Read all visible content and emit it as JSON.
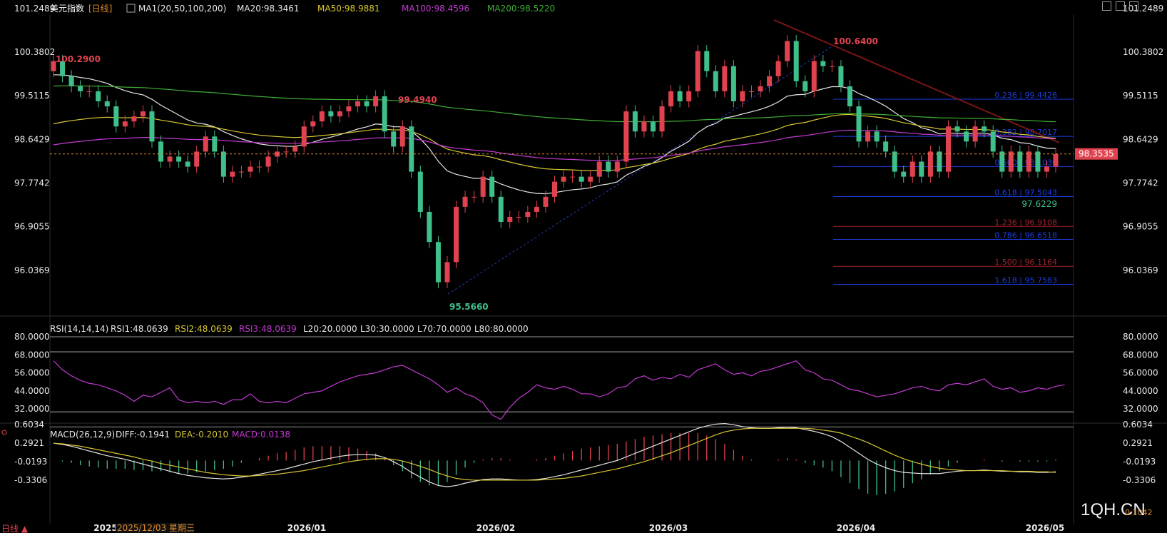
{
  "header": {
    "name": "美元指数",
    "period": "[日线]",
    "ma_icon": "chart-settings-icon",
    "ma_label": "MA1(20,50,100,200)",
    "ma20": "MA20:98.3461",
    "ma50": "MA50:98.9881",
    "ma100": "MA100:98.4596",
    "ma200": "MA200:98.5220"
  },
  "rsi_header": {
    "label": "RSI(14,14,14)",
    "rsi1": "RSI1:48.0639",
    "rsi2": "RSI2:48.0639",
    "rsi3": "RSI3:48.0639",
    "l20": "L20:20.0000",
    "l30": "L30:30.0000",
    "l70": "L70:70.0000",
    "l80": "L80:80.0000"
  },
  "macd_header": {
    "label": "MACD(26,12,9)",
    "diff": "DIFF:-0.1941",
    "dea": "DEA:-0.2010",
    "macd": "MACD:0.0138"
  },
  "price_ticks": [
    "101.2489",
    "100.3802",
    "99.5115",
    "98.6429",
    "97.7742",
    "96.9055",
    "96.0369"
  ],
  "rsi_ticks": [
    "80.0000",
    "68.0000",
    "56.0000",
    "44.0000",
    "32.0000"
  ],
  "macd_ticks": [
    "0.6034",
    "0.2921",
    "-0.0193",
    "-0.3306"
  ],
  "current_price": "98.3535",
  "x_labels": [
    "2025",
    "2026/01",
    "2026/02",
    "2026/03",
    "2026/04",
    "2026/05"
  ],
  "cursor_date": "2025/12/03 星期三",
  "bottom_left": "日线 ▲",
  "annotations": {
    "high_left": "100.2900",
    "mid_high": "99.4940",
    "low": "95.5660",
    "top_high": "100.6400",
    "recent_low": "97.6229"
  },
  "fib_labels": [
    "0.236 | 99.4426",
    "0.382 | 98.7017",
    "0.500 | 98.1030",
    "0.618 | 97.5043",
    "1.236 | 96.9108",
    "0.786 | 96.6518",
    "1.500 | 96.1164",
    "1.618 | 95.7583"
  ],
  "watermark": "1QH.CN",
  "watermark_sub": "0.1042",
  "colors": {
    "up": "#e0434f",
    "down": "#3fbf8a",
    "ma20": "#e6e6e6",
    "ma50": "#d8c832",
    "ma100": "#c33ad2",
    "ma200": "#3fae35",
    "rsi": "#c33ad2",
    "fib": "#2a3fe0",
    "label_red": "#e0434f",
    "label_green": "#3fbf8a"
  },
  "chart_data": [
    {
      "type": "candlestick",
      "title": "美元指数",
      "period": "daily",
      "x_range": [
        "2025/11",
        "2026/05"
      ],
      "ylim": [
        95.3,
        101.4
      ],
      "closes": [
        100.2,
        99.9,
        99.7,
        99.6,
        99.6,
        99.4,
        99.3,
        98.9,
        99.0,
        99.1,
        99.2,
        98.6,
        98.2,
        98.3,
        98.2,
        98.1,
        98.4,
        98.7,
        98.4,
        97.9,
        98.0,
        98.0,
        98.1,
        98.1,
        98.3,
        98.4,
        98.4,
        98.5,
        98.9,
        99.0,
        99.2,
        99.1,
        99.2,
        99.3,
        99.4,
        99.3,
        99.5,
        98.8,
        98.5,
        98.9,
        98.0,
        97.2,
        96.6,
        95.8,
        96.2,
        97.3,
        97.5,
        97.5,
        97.9,
        97.5,
        97.0,
        97.1,
        97.1,
        97.2,
        97.3,
        97.5,
        97.8,
        97.9,
        97.9,
        97.8,
        97.9,
        98.2,
        98.0,
        98.2,
        99.2,
        98.8,
        99.0,
        98.8,
        99.3,
        99.6,
        99.4,
        99.6,
        100.4,
        100.0,
        99.6,
        100.1,
        99.4,
        99.6,
        99.6,
        99.7,
        99.9,
        100.2,
        100.6,
        99.8,
        99.6,
        100.2,
        100.1,
        100.1,
        99.7,
        99.3,
        98.6,
        98.8,
        98.6,
        98.4,
        98.0,
        97.9,
        98.2,
        97.9,
        98.4,
        98.0,
        98.9,
        98.8,
        98.6,
        98.9,
        98.8,
        98.4,
        98.0,
        98.4,
        98.0,
        98.4,
        98.0,
        98.1,
        98.35
      ],
      "fib_levels": [
        {
          "ratio": 0.236,
          "value": 99.4426
        },
        {
          "ratio": 0.382,
          "value": 98.7017
        },
        {
          "ratio": 0.5,
          "value": 98.103
        },
        {
          "ratio": 0.618,
          "value": 97.5043
        },
        {
          "ratio": 1.236,
          "value": 96.9108
        },
        {
          "ratio": 0.786,
          "value": 96.6518
        },
        {
          "ratio": 1.5,
          "value": 96.1164
        },
        {
          "ratio": 1.618,
          "value": 95.7583
        }
      ]
    },
    {
      "type": "line",
      "title": "RSI(14,14,14)",
      "ylim": [
        20,
        80
      ],
      "series": [
        {
          "name": "RSI1",
          "values": [
            64,
            58,
            54,
            51,
            49,
            48,
            46,
            44,
            41,
            37,
            41,
            40,
            43,
            46,
            38,
            36,
            37,
            36,
            37,
            35,
            38,
            38,
            42,
            37,
            36,
            37,
            36,
            39,
            42,
            43,
            44,
            47,
            50,
            52,
            54,
            55,
            56,
            58,
            60,
            61,
            58,
            55,
            52,
            48,
            43,
            46,
            42,
            40,
            36,
            28,
            25,
            33,
            39,
            43,
            48,
            46,
            45,
            47,
            45,
            42,
            42,
            40,
            42,
            46,
            47,
            52,
            54,
            51,
            53,
            52,
            55,
            53,
            58,
            60,
            62,
            58,
            55,
            56,
            54,
            57,
            58,
            60,
            62,
            64,
            58,
            56,
            52,
            51,
            48,
            45,
            44,
            42,
            40,
            41,
            42,
            44,
            46,
            47,
            45,
            44,
            48,
            49,
            48,
            50,
            52,
            47,
            45,
            46,
            43,
            44,
            46,
            45,
            47,
            48
          ]
        }
      ]
    },
    {
      "type": "bar+line",
      "title": "MACD(26,12,9)",
      "ylim": [
        -0.5,
        0.7
      ],
      "series": [
        {
          "name": "DIFF",
          "values": [
            0.29,
            0.27,
            0.24,
            0.2,
            0.16,
            0.12,
            0.08,
            0.05,
            0.02,
            -0.02,
            -0.06,
            -0.1,
            -0.14,
            -0.18,
            -0.22,
            -0.25,
            -0.27,
            -0.29,
            -0.3,
            -0.31,
            -0.3,
            -0.28,
            -0.26,
            -0.23,
            -0.2,
            -0.17,
            -0.14,
            -0.1,
            -0.06,
            -0.02,
            0.01,
            0.04,
            0.07,
            0.09,
            0.1,
            0.1,
            0.09,
            0.05,
            -0.02,
            -0.1,
            -0.2,
            -0.28,
            -0.36,
            -0.42,
            -0.44,
            -0.42,
            -0.38,
            -0.35,
            -0.32,
            -0.31,
            -0.31,
            -0.32,
            -0.33,
            -0.33,
            -0.32,
            -0.3,
            -0.27,
            -0.24,
            -0.2,
            -0.16,
            -0.12,
            -0.08,
            -0.04,
            0.0,
            0.06,
            0.12,
            0.18,
            0.24,
            0.3,
            0.36,
            0.42,
            0.48,
            0.54,
            0.58,
            0.61,
            0.62,
            0.6,
            0.57,
            0.55,
            0.54,
            0.54,
            0.55,
            0.56,
            0.55,
            0.52,
            0.49,
            0.45,
            0.4,
            0.32,
            0.22,
            0.12,
            0.02,
            -0.06,
            -0.12,
            -0.17,
            -0.2,
            -0.21,
            -0.22,
            -0.22,
            -0.22,
            -0.2,
            -0.18,
            -0.17,
            -0.17,
            -0.16,
            -0.17,
            -0.18,
            -0.18,
            -0.19,
            -0.19,
            -0.2,
            -0.2,
            -0.19
          ]
        },
        {
          "name": "DEA",
          "values": [
            0.29,
            0.28,
            0.26,
            0.24,
            0.21,
            0.18,
            0.15,
            0.12,
            0.09,
            0.06,
            0.02,
            -0.01,
            -0.05,
            -0.08,
            -0.11,
            -0.14,
            -0.17,
            -0.2,
            -0.22,
            -0.24,
            -0.25,
            -0.26,
            -0.26,
            -0.25,
            -0.24,
            -0.23,
            -0.21,
            -0.19,
            -0.17,
            -0.14,
            -0.11,
            -0.08,
            -0.05,
            -0.02,
            0.0,
            0.02,
            0.03,
            0.03,
            0.02,
            -0.01,
            -0.05,
            -0.1,
            -0.15,
            -0.21,
            -0.26,
            -0.3,
            -0.32,
            -0.33,
            -0.33,
            -0.33,
            -0.33,
            -0.33,
            -0.33,
            -0.33,
            -0.33,
            -0.32,
            -0.31,
            -0.3,
            -0.28,
            -0.26,
            -0.23,
            -0.2,
            -0.17,
            -0.14,
            -0.1,
            -0.06,
            -0.02,
            0.03,
            0.08,
            0.13,
            0.19,
            0.25,
            0.31,
            0.37,
            0.43,
            0.48,
            0.51,
            0.53,
            0.54,
            0.54,
            0.54,
            0.54,
            0.54,
            0.54,
            0.54,
            0.53,
            0.51,
            0.49,
            0.46,
            0.41,
            0.36,
            0.3,
            0.23,
            0.16,
            0.09,
            0.03,
            -0.02,
            -0.06,
            -0.1,
            -0.13,
            -0.15,
            -0.16,
            -0.17,
            -0.17,
            -0.17,
            -0.17,
            -0.17,
            -0.18,
            -0.18,
            -0.18,
            -0.19,
            -0.19,
            -0.2
          ]
        }
      ]
    }
  ]
}
